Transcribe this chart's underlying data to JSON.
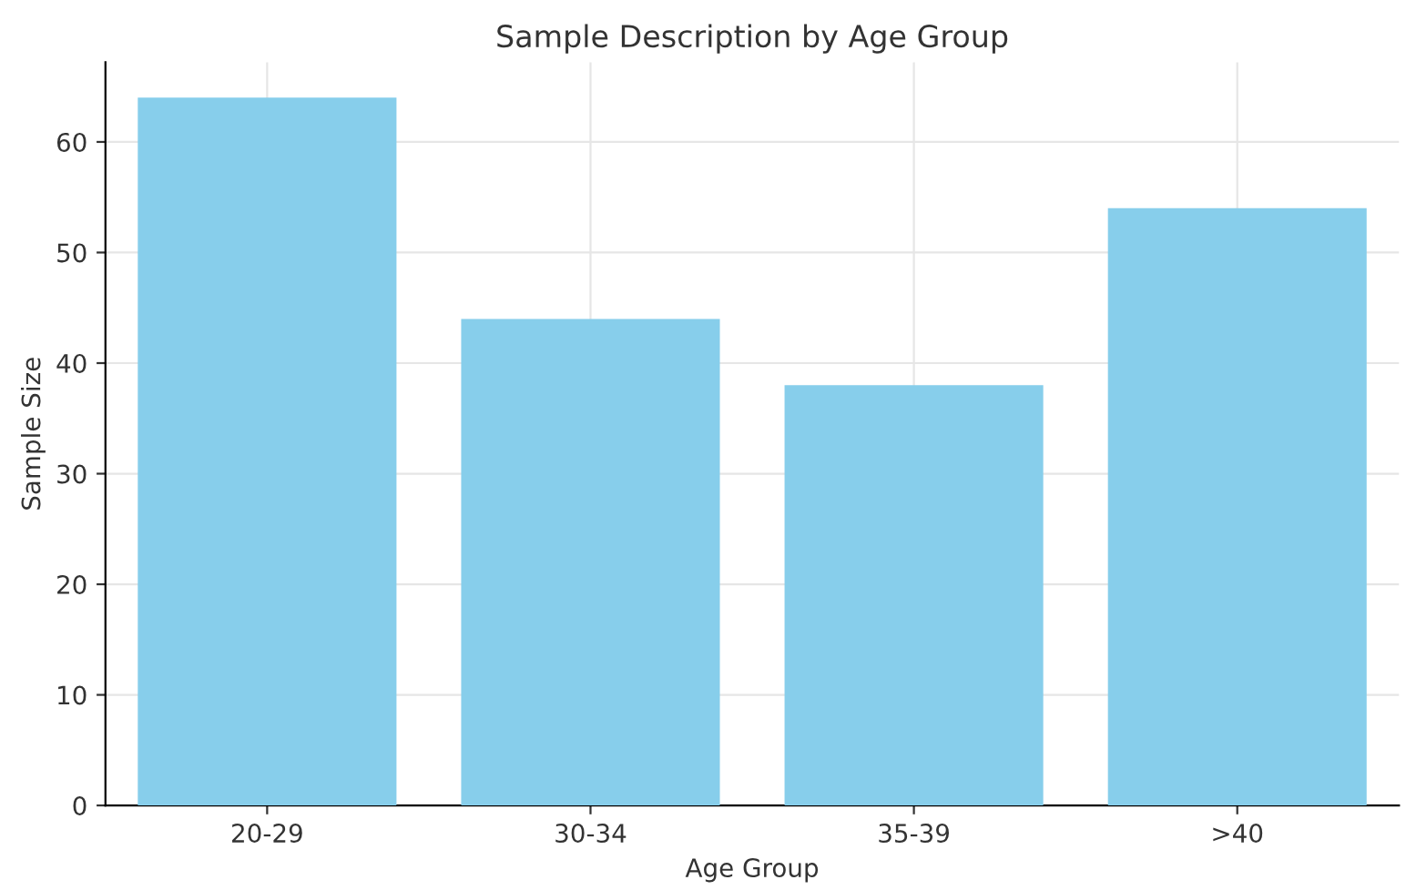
{
  "chart_data": {
    "type": "bar",
    "title": "Sample Description by Age Group",
    "xlabel": "Age Group",
    "ylabel": "Sample Size",
    "categories": [
      "20-29",
      "30-34",
      "35-39",
      ">40"
    ],
    "values": [
      64,
      44,
      38,
      54
    ],
    "color": "#87ceeb",
    "ylim": [
      0,
      67.2
    ],
    "yticks": [
      0,
      10,
      20,
      30,
      40,
      50,
      60
    ],
    "grid": true
  }
}
